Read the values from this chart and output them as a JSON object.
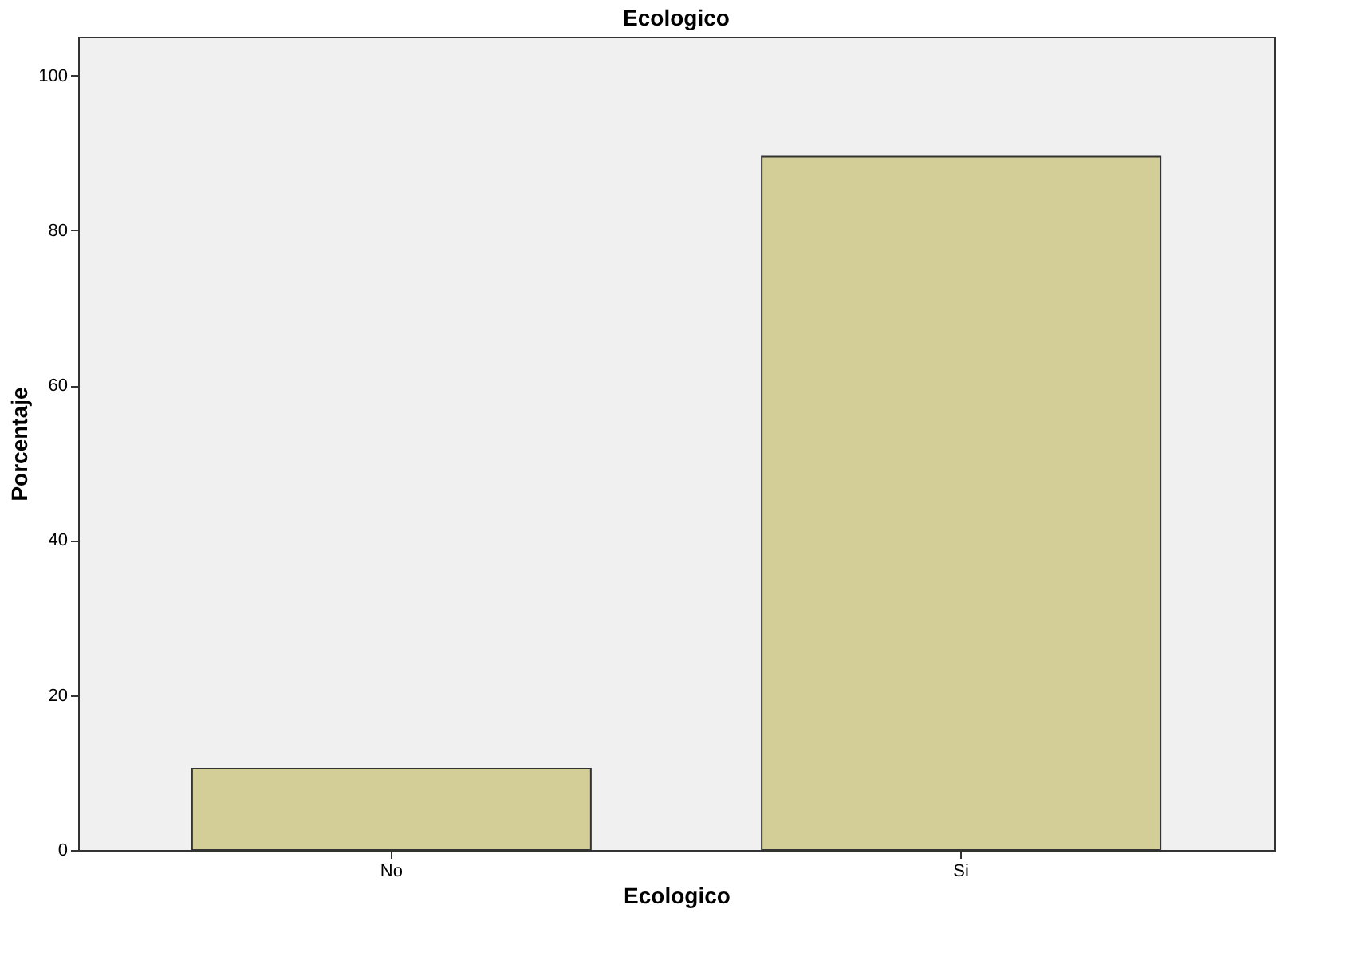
{
  "chart_data": {
    "type": "bar",
    "title": "Ecologico",
    "xlabel": "Ecologico",
    "ylabel": "Porcentaje",
    "categories": [
      "No",
      "Si"
    ],
    "values": [
      10.5,
      89.5
    ],
    "color": "#d3ce97",
    "ylim": [
      0,
      105
    ],
    "yticks": [
      0,
      20,
      40,
      60,
      80,
      100
    ],
    "grid": false
  }
}
